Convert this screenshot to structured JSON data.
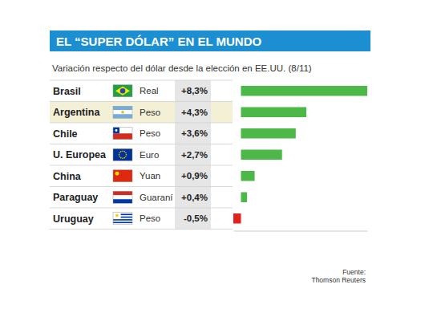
{
  "chart_data": {
    "type": "bar",
    "orientation": "horizontal",
    "title": "EL “SUPER DÓLAR” EN EL MUNDO",
    "subtitle": "Variación respecto del dólar desde la elección en EE.UU. (8/11)",
    "categories": [
      "Brasil",
      "Argentina",
      "Chile",
      "U. Europea",
      "China",
      "Paraguay",
      "Uruguay"
    ],
    "currencies": [
      "Real",
      "Peso",
      "Peso",
      "Euro",
      "Yuan",
      "Guaraní",
      "Peso"
    ],
    "values": [
      8.3,
      4.3,
      3.6,
      2.7,
      0.9,
      0.4,
      -0.5
    ],
    "value_labels": [
      "+8,3%",
      "+4,3%",
      "+3,6%",
      "+2,7%",
      "+0,9%",
      "+0,4%",
      "-0,5%"
    ],
    "colors": [
      "#4cb848",
      "#4cb848",
      "#4cb848",
      "#4cb848",
      "#4cb848",
      "#4cb848",
      "#e3211c"
    ],
    "xlim": [
      -0.5,
      8.3
    ],
    "data_labels": true,
    "tick_labels": false,
    "grid": false,
    "annotations": [
      "Fuente:",
      "Thomson Reuters"
    ]
  }
}
